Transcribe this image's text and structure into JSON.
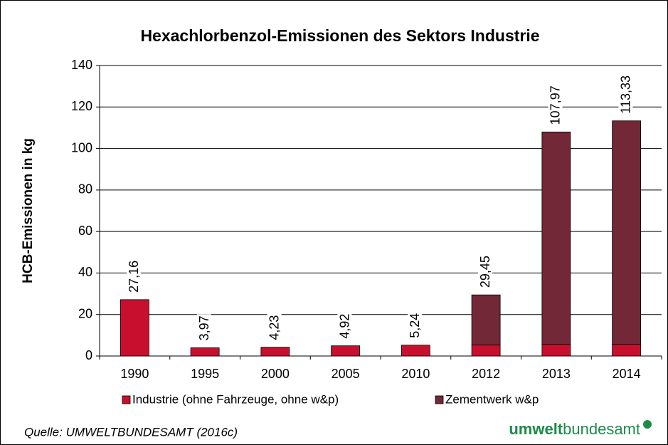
{
  "chart_data": {
    "type": "stacked_bar",
    "title": "Hexachlorbenzol-Emissionen des Sektors Industrie",
    "y_label": "HCB-Emissionen in kg",
    "categories": [
      "1990",
      "1995",
      "2000",
      "2005",
      "2010",
      "2012",
      "2013",
      "2014"
    ],
    "series": [
      {
        "name": "Industrie (ohne Fahrzeuge, ohne w&p)",
        "color": "#c8102e",
        "values": [
          27.16,
          3.97,
          4.23,
          4.92,
          5.24,
          5.3,
          5.6,
          5.6
        ]
      },
      {
        "name": "Zementwerk w&p",
        "color": "#722837",
        "values": [
          null,
          null,
          null,
          null,
          null,
          24.15,
          102.37,
          107.73
        ]
      }
    ],
    "totals": [
      27.16,
      3.97,
      4.23,
      4.92,
      5.24,
      29.45,
      107.97,
      113.33
    ],
    "total_labels": [
      "27,16",
      "3,97",
      "4,23",
      "4,92",
      "5,24",
      "29,45",
      "107,97",
      "113,33"
    ],
    "ylim": [
      0,
      140
    ],
    "yticks": [
      0,
      20,
      40,
      60,
      80,
      100,
      120,
      140
    ],
    "grid": true,
    "legend": "bottom",
    "source": "Quelle: UMWELTBUNDESAMT (2016c)",
    "logo": {
      "part1": "umwelt",
      "part2": "bundesamt"
    }
  }
}
